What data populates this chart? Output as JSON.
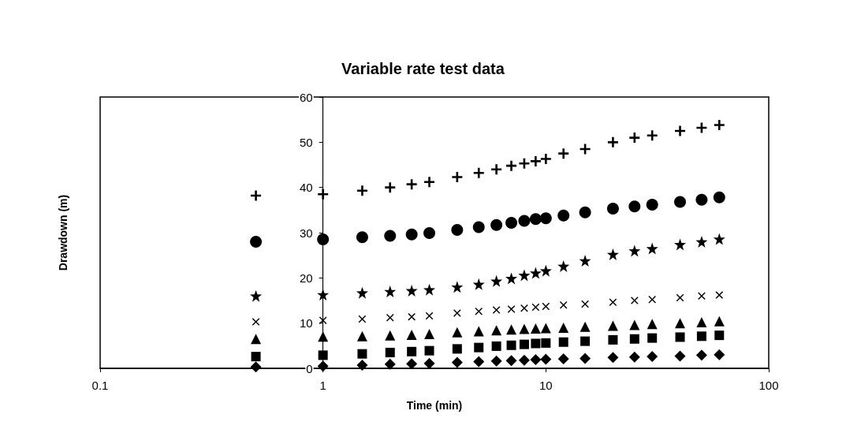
{
  "chart_data": {
    "type": "scatter",
    "title": "Variable rate test data",
    "xlabel": "Time (min)",
    "ylabel": "Drawdown (m)",
    "log": "x",
    "grid": false,
    "xlim": [
      0.1,
      100
    ],
    "xticks": [
      0.1,
      1,
      10,
      100
    ],
    "ylim": [
      0,
      60
    ],
    "yticks": [
      0,
      10,
      20,
      30,
      40,
      50,
      60
    ],
    "x": [
      0.5,
      1,
      1.5,
      2,
      2.5,
      3,
      4,
      5,
      6,
      7,
      8,
      9,
      10,
      12,
      15,
      20,
      25,
      30,
      40,
      50,
      60
    ],
    "series": [
      {
        "color": "#000000",
        "marker": "cross",
        "values": [
          38.2,
          38.5,
          39.3,
          40,
          40.7,
          41.2,
          42.3,
          43.2,
          44,
          44.8,
          45.3,
          45.8,
          46.3,
          47.5,
          48.5,
          50,
          51,
          51.5,
          52.5,
          53.2,
          53.8
        ]
      },
      {
        "color": "#000000",
        "marker": "circle",
        "values": [
          28,
          28.5,
          29,
          29.3,
          29.6,
          29.9,
          30.6,
          31.2,
          31.7,
          32.2,
          32.6,
          33,
          33.2,
          33.8,
          34.5,
          35.3,
          35.8,
          36.2,
          36.8,
          37.3,
          37.8
        ]
      },
      {
        "color": "#000000",
        "marker": "star",
        "values": [
          16,
          16.3,
          16.7,
          17,
          17.2,
          17.4,
          18,
          18.6,
          19.3,
          19.9,
          20.6,
          21.1,
          21.6,
          22.6,
          23.8,
          25.2,
          26,
          26.5,
          27.4,
          28,
          28.6
        ]
      },
      {
        "color": "#000000",
        "marker": "x",
        "values": [
          10.3,
          10.6,
          10.9,
          11.2,
          11.4,
          11.6,
          12.2,
          12.6,
          12.9,
          13.1,
          13.3,
          13.5,
          13.7,
          14,
          14.2,
          14.6,
          15,
          15.2,
          15.6,
          16,
          16.2
        ]
      },
      {
        "color": "#000000",
        "marker": "triangle",
        "values": [
          6.5,
          7,
          7.1,
          7.3,
          7.4,
          7.6,
          8,
          8.2,
          8.4,
          8.6,
          8.7,
          8.8,
          8.9,
          9,
          9.2,
          9.4,
          9.6,
          9.8,
          10,
          10.2,
          10.4
        ]
      },
      {
        "color": "#000000",
        "marker": "square",
        "values": [
          2.6,
          2.9,
          3.2,
          3.5,
          3.7,
          3.9,
          4.3,
          4.6,
          4.9,
          5.1,
          5.3,
          5.5,
          5.6,
          5.8,
          6,
          6.3,
          6.5,
          6.7,
          6.9,
          7.1,
          7.3
        ]
      },
      {
        "color": "#000000",
        "marker": "diamond",
        "values": [
          0.3,
          0.5,
          0.7,
          0.9,
          1,
          1.1,
          1.3,
          1.5,
          1.6,
          1.7,
          1.8,
          1.9,
          2,
          2.1,
          2.2,
          2.4,
          2.5,
          2.6,
          2.7,
          2.9,
          3
        ]
      }
    ]
  }
}
